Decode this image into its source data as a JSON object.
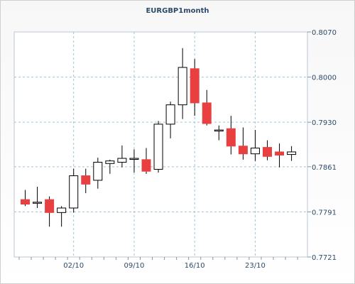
{
  "chart_data": {
    "type": "candlestick",
    "title": "EURGBP1month",
    "y_ticks": [
      "0.7721",
      "0.7791",
      "0.7861",
      "0.7930",
      "0.8000",
      "0.8070"
    ],
    "x_ticks": [
      "02/10",
      "09/10",
      "16/10",
      "23/10"
    ],
    "ylim": [
      0.7721,
      0.807
    ],
    "grid": true,
    "up_color": "#ffffff",
    "down_color": "#e84040",
    "series": [
      {
        "o": 0.781,
        "h": 0.7825,
        "l": 0.78,
        "c": 0.7803
      },
      {
        "o": 0.7806,
        "h": 0.783,
        "l": 0.7797,
        "c": 0.7806
      },
      {
        "o": 0.781,
        "h": 0.7815,
        "l": 0.7768,
        "c": 0.779
      },
      {
        "o": 0.779,
        "h": 0.78,
        "l": 0.7768,
        "c": 0.7797
      },
      {
        "o": 0.7797,
        "h": 0.7858,
        "l": 0.779,
        "c": 0.7847
      },
      {
        "o": 0.7847,
        "h": 0.7858,
        "l": 0.782,
        "c": 0.7834
      },
      {
        "o": 0.784,
        "h": 0.7875,
        "l": 0.7827,
        "c": 0.7868
      },
      {
        "o": 0.7866,
        "h": 0.7872,
        "l": 0.785,
        "c": 0.787
      },
      {
        "o": 0.7868,
        "h": 0.7894,
        "l": 0.786,
        "c": 0.7874
      },
      {
        "o": 0.7874,
        "h": 0.7888,
        "l": 0.7852,
        "c": 0.7874
      },
      {
        "o": 0.7872,
        "h": 0.789,
        "l": 0.785,
        "c": 0.7854
      },
      {
        "o": 0.7857,
        "h": 0.7932,
        "l": 0.7852,
        "c": 0.7927
      },
      {
        "o": 0.7927,
        "h": 0.7962,
        "l": 0.7905,
        "c": 0.7957
      },
      {
        "o": 0.7957,
        "h": 0.8045,
        "l": 0.7935,
        "c": 0.8015
      },
      {
        "o": 0.8013,
        "h": 0.8028,
        "l": 0.794,
        "c": 0.796
      },
      {
        "o": 0.796,
        "h": 0.798,
        "l": 0.7925,
        "c": 0.7928
      },
      {
        "o": 0.7918,
        "h": 0.7925,
        "l": 0.7902,
        "c": 0.7918
      },
      {
        "o": 0.792,
        "h": 0.794,
        "l": 0.788,
        "c": 0.7893
      },
      {
        "o": 0.7893,
        "h": 0.7922,
        "l": 0.7872,
        "c": 0.7881
      },
      {
        "o": 0.7881,
        "h": 0.7918,
        "l": 0.787,
        "c": 0.789
      },
      {
        "o": 0.7891,
        "h": 0.7902,
        "l": 0.7871,
        "c": 0.7877
      },
      {
        "o": 0.7884,
        "h": 0.7897,
        "l": 0.786,
        "c": 0.7879
      },
      {
        "o": 0.788,
        "h": 0.7893,
        "l": 0.787,
        "c": 0.7884
      }
    ]
  }
}
